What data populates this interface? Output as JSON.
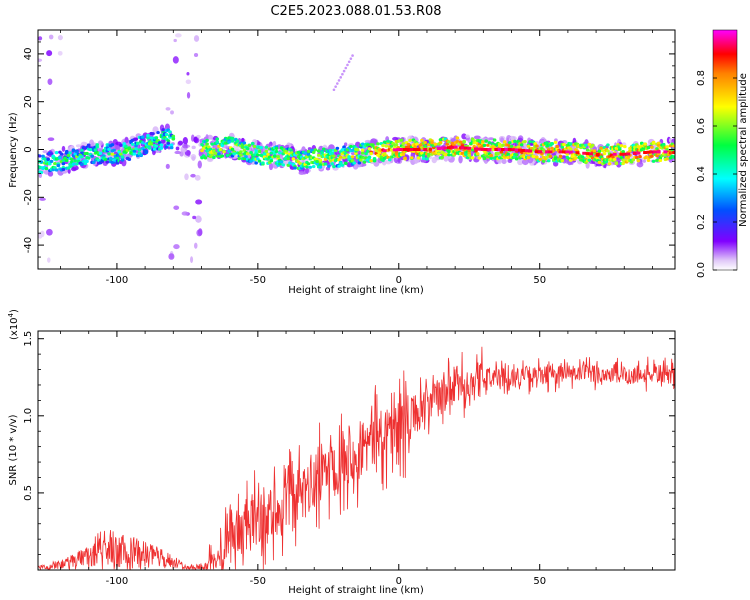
{
  "title": "C2E5.2023.088.01.53.R08",
  "colors": {
    "snr_line": "#ee3030",
    "colormap": [
      "#ffffff",
      "#d8b8f8",
      "#8000ff",
      "#0060ff",
      "#00ffff",
      "#00ff60",
      "#ffff00",
      "#ff8000",
      "#ff0000",
      "#ff00ff"
    ]
  },
  "chart_data": [
    {
      "type": "heatmap",
      "panel": "spectrogram",
      "xlabel": "Height of straight line (km)",
      "ylabel": "Frequency (Hz)",
      "xlim": [
        -128,
        98
      ],
      "ylim": [
        -50,
        50
      ],
      "xticks": [
        -100,
        -50,
        0,
        50
      ],
      "yticks": [
        -40,
        -20,
        0,
        20,
        40
      ],
      "colorbar": {
        "label": "Normalized spectral amplitude",
        "range": [
          0,
          1
        ],
        "ticks": [
          "0.0",
          "0.2",
          "0.4",
          "0.6",
          "0.8"
        ]
      },
      "ridge": {
        "x": [
          -127,
          -120,
          -110,
          -100,
          -90,
          -82,
          -70,
          -60,
          -50,
          -40,
          -35,
          -30,
          -20,
          -10,
          0,
          10,
          20,
          30,
          40,
          50,
          60,
          70,
          80,
          90,
          97
        ],
        "y": [
          -6,
          -5,
          -2,
          -2,
          2,
          5,
          0,
          1,
          -2,
          -3,
          -5,
          -4,
          -3,
          -1,
          0,
          0,
          1,
          0,
          0,
          -1,
          -1,
          -2,
          -2,
          -1,
          -1
        ]
      }
    },
    {
      "type": "line",
      "panel": "snr",
      "xlabel": "Height of straight line (km)",
      "ylabel": "SNR (10 * v/v)",
      "y_scale_label": "(x10",
      "y_scale_exp": "4",
      "xlim": [
        -128,
        98
      ],
      "ylim": [
        0,
        1.55
      ],
      "xticks": [
        -100,
        -50,
        0,
        50
      ],
      "yticks": [
        "0.5",
        "1.0",
        "1.5"
      ],
      "envelope": {
        "x": [
          -128,
          -120,
          -110,
          -105,
          -100,
          -90,
          -80,
          -75,
          -68,
          -65,
          -60,
          -55,
          -50,
          -45,
          -40,
          -35,
          -30,
          -25,
          -20,
          -15,
          -10,
          -5,
          0,
          5,
          10,
          15,
          20,
          30,
          40,
          50,
          60,
          70,
          80,
          90,
          98
        ],
        "y": [
          0.02,
          0.04,
          0.1,
          0.18,
          0.16,
          0.12,
          0.06,
          0.02,
          0.03,
          0.15,
          0.25,
          0.28,
          0.35,
          0.38,
          0.45,
          0.5,
          0.6,
          0.7,
          0.76,
          0.8,
          0.85,
          0.92,
          0.95,
          1.02,
          1.08,
          1.14,
          1.2,
          1.25,
          1.26,
          1.27,
          1.28,
          1.28,
          1.27,
          1.28,
          1.27
        ]
      }
    }
  ]
}
